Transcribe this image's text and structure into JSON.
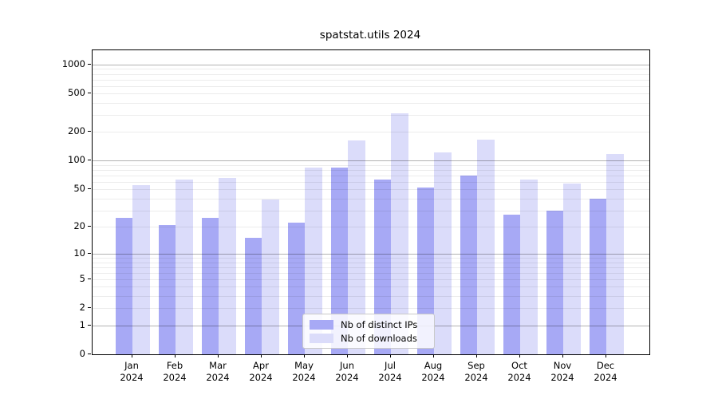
{
  "title": "spatstat.utils 2024",
  "colors": {
    "distinct_ips": "#a7a9f5",
    "downloads": "#dbdcfa",
    "major_grid": "rgba(0,0,0,0.30)",
    "minor_grid": "rgba(0,0,0,0.075)",
    "axis": "#000000"
  },
  "legend": {
    "entries": [
      {
        "label": "Nb of distinct IPs"
      },
      {
        "label": "Nb of downloads"
      }
    ]
  },
  "chart_data": {
    "type": "bar",
    "title": "spatstat.utils 2024",
    "categories": [
      "Jan",
      "Feb",
      "Mar",
      "Apr",
      "May",
      "Jun",
      "Jul",
      "Aug",
      "Sep",
      "Oct",
      "Nov",
      "Dec"
    ],
    "category_year": "2024",
    "series": [
      {
        "name": "Nb of distinct IPs",
        "color": "#a7a9f5",
        "values": [
          25,
          21,
          25,
          15,
          22,
          85,
          63,
          52,
          70,
          27,
          30,
          40
        ]
      },
      {
        "name": "Nb of downloads",
        "color": "#dbdcfa",
        "values": [
          56,
          63,
          66,
          39,
          85,
          164,
          310,
          122,
          167,
          63,
          58,
          117
        ]
      }
    ],
    "xlabel": "",
    "ylabel": "",
    "yscale": "log1p",
    "ylim": [
      0,
      1408
    ],
    "yticks": [
      0,
      1,
      2,
      5,
      10,
      20,
      50,
      100,
      200,
      500,
      1000
    ],
    "major_gridlines": [
      1,
      10,
      100,
      1000
    ],
    "minor_gridlines": [
      2,
      3,
      4,
      5,
      6,
      7,
      8,
      9,
      20,
      30,
      40,
      50,
      60,
      70,
      80,
      90,
      200,
      300,
      400,
      500,
      600,
      700,
      800,
      900
    ],
    "grid": "on",
    "legend_position": "bottom-center"
  }
}
